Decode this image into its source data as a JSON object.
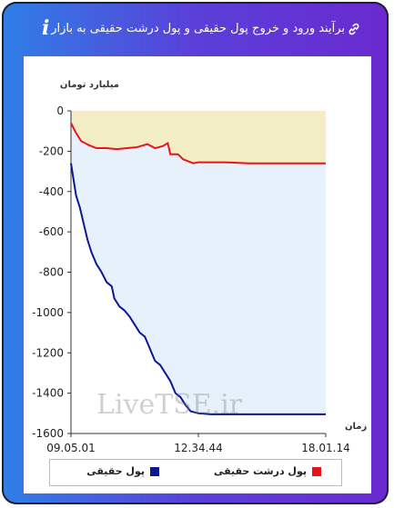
{
  "header": {
    "title": "برآیند ورود و خروج پول حقیقی و پول درشت حقیقی به بازار",
    "link_icon": "link-icon",
    "info_icon": "info-icon",
    "info_glyph": "i"
  },
  "watermark": "LiveTSE.ir",
  "colors": {
    "real_money": "#0d1791",
    "big_real_money": "#e8141b",
    "fill_real": "#e6f1fb",
    "fill_big": "#f3edc6"
  },
  "chart_data": {
    "type": "area",
    "ylabel": "میلیارد تومان",
    "xlabel": "زمان",
    "ylim": [
      -1600,
      0
    ],
    "yticks": [
      0,
      -200,
      -400,
      -600,
      -800,
      -1000,
      -1200,
      -1400,
      -1600
    ],
    "xticks": [
      "09.05.01",
      "12.34.44",
      "18.01.14"
    ],
    "legend_position": "bottom",
    "grid": false,
    "series": [
      {
        "name": "پول حقیقی",
        "color": "#0d1791",
        "points": [
          [
            0,
            -260
          ],
          [
            0.01,
            -340
          ],
          [
            0.02,
            -420
          ],
          [
            0.035,
            -480
          ],
          [
            0.05,
            -560
          ],
          [
            0.065,
            -640
          ],
          [
            0.08,
            -700
          ],
          [
            0.1,
            -760
          ],
          [
            0.12,
            -800
          ],
          [
            0.14,
            -850
          ],
          [
            0.16,
            -870
          ],
          [
            0.17,
            -930
          ],
          [
            0.19,
            -970
          ],
          [
            0.21,
            -990
          ],
          [
            0.23,
            -1020
          ],
          [
            0.25,
            -1060
          ],
          [
            0.27,
            -1100
          ],
          [
            0.29,
            -1120
          ],
          [
            0.31,
            -1180
          ],
          [
            0.33,
            -1240
          ],
          [
            0.35,
            -1260
          ],
          [
            0.37,
            -1300
          ],
          [
            0.39,
            -1340
          ],
          [
            0.41,
            -1400
          ],
          [
            0.43,
            -1420
          ],
          [
            0.45,
            -1460
          ],
          [
            0.47,
            -1490
          ],
          [
            0.5,
            -1500
          ],
          [
            0.55,
            -1505
          ],
          [
            0.7,
            -1505
          ],
          [
            1.0,
            -1505
          ]
        ]
      },
      {
        "name": "پول درشت حقیقی",
        "color": "#e8141b",
        "points": [
          [
            0,
            -60
          ],
          [
            0.02,
            -110
          ],
          [
            0.04,
            -150
          ],
          [
            0.07,
            -170
          ],
          [
            0.1,
            -185
          ],
          [
            0.14,
            -185
          ],
          [
            0.18,
            -190
          ],
          [
            0.22,
            -185
          ],
          [
            0.26,
            -180
          ],
          [
            0.3,
            -165
          ],
          [
            0.33,
            -185
          ],
          [
            0.36,
            -175
          ],
          [
            0.38,
            -160
          ],
          [
            0.39,
            -215
          ],
          [
            0.42,
            -215
          ],
          [
            0.44,
            -240
          ],
          [
            0.46,
            -250
          ],
          [
            0.48,
            -260
          ],
          [
            0.5,
            -255
          ],
          [
            0.52,
            -255
          ],
          [
            0.6,
            -255
          ],
          [
            0.7,
            -260
          ],
          [
            0.8,
            -260
          ],
          [
            1.0,
            -260
          ]
        ]
      }
    ]
  }
}
